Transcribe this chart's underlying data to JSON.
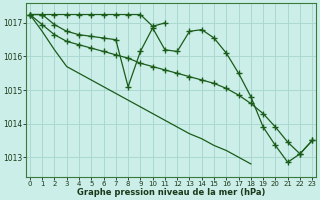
{
  "xlabel": "Graphe pression niveau de la mer (hPa)",
  "background_color": "#cceee8",
  "grid_color": "#aad8d0",
  "line_color": "#1a5c1a",
  "ylim": [
    1012.4,
    1017.6
  ],
  "xlim": [
    0,
    23
  ],
  "yticks": [
    1013,
    1014,
    1015,
    1016,
    1017
  ],
  "xticks": [
    0,
    1,
    2,
    3,
    4,
    5,
    6,
    7,
    8,
    9,
    10,
    11,
    12,
    13,
    14,
    15,
    16,
    17,
    18,
    19,
    20,
    21,
    22,
    23
  ],
  "series1": [
    1017.25,
    1017.25,
    1016.95,
    1016.75,
    1016.65,
    1016.6,
    1016.55,
    1016.5,
    1015.1,
    1016.15,
    1016.85,
    1016.2,
    1016.15,
    1016.75,
    1016.8,
    1016.55,
    1016.1,
    1015.5,
    1014.8,
    1013.9,
    1013.35,
    1012.85,
    1013.1,
    1013.5
  ],
  "series2": [
    1017.25,
    1017.25,
    1017.25,
    1017.25,
    1017.25,
    1017.25,
    1017.25,
    1017.25,
    1017.25,
    1017.25,
    1016.9,
    1017.0,
    null,
    null,
    null,
    null,
    null,
    null,
    null,
    null,
    null,
    null,
    null,
    null
  ],
  "series3": [
    1017.25,
    1016.75,
    1016.2,
    1015.7,
    1015.5,
    1015.3,
    1015.1,
    1014.9,
    1014.7,
    1014.5,
    1014.3,
    1014.1,
    1013.9,
    1013.7,
    1013.55,
    1013.35,
    1013.2,
    1013.0,
    1012.8,
    null,
    null,
    null,
    null,
    null
  ],
  "series4": [
    1017.25,
    1016.95,
    1016.65,
    1016.45,
    1016.35,
    1016.25,
    1016.15,
    1016.05,
    1015.95,
    1015.8,
    1015.7,
    1015.6,
    1015.5,
    1015.4,
    1015.3,
    1015.2,
    1015.05,
    1014.85,
    1014.6,
    1014.3,
    1013.9,
    1013.45,
    1013.1,
    1013.5
  ]
}
